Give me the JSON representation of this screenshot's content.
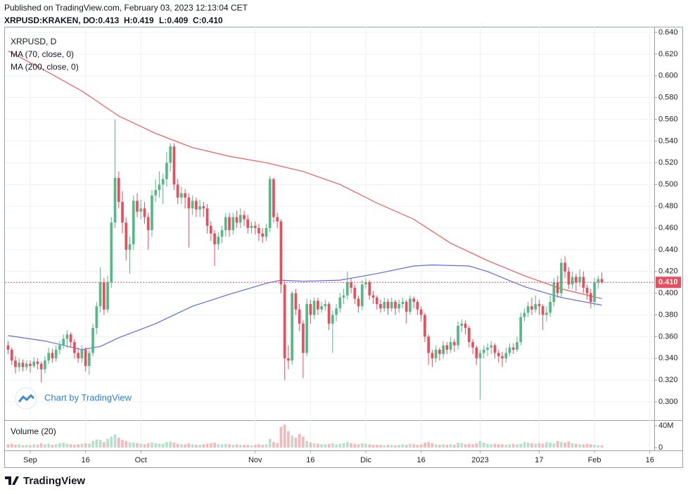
{
  "header": {
    "published": "Published on TradingView.com, February 03, 2023 12:13:04 CET",
    "symbol": "XRPUSD:KRAKEN, D",
    "ohlc_labels": [
      "O:0.413",
      "H:0.419",
      "L:0.409",
      "C:0.410"
    ]
  },
  "chart_data": {
    "type": "candlestick",
    "legend": [
      "XRPUSD, D",
      "MA (70, close, 0)",
      "MA (200, close, 0)"
    ],
    "volume_title": "Volume (20)",
    "watermark": "Chart by TradingView",
    "up_color": "#53b987",
    "down_color": "#eb4d5c",
    "volume_up_color": "#b7e1cd",
    "volume_down_color": "#f5b8bd",
    "xlim": [
      -0.86,
      175.2
    ],
    "xticks": [
      {
        "value": 6,
        "label": "Sep"
      },
      {
        "value": 21,
        "label": "16"
      },
      {
        "value": 36,
        "label": "Oct"
      },
      {
        "value": 67,
        "label": "Nov"
      },
      {
        "value": 82,
        "label": "16"
      },
      {
        "value": 97,
        "label": "Dic"
      },
      {
        "value": 112,
        "label": "16"
      },
      {
        "value": 128,
        "label": "2023"
      },
      {
        "value": 144,
        "label": "17"
      },
      {
        "value": 159,
        "label": "Feb"
      },
      {
        "value": 174,
        "label": "16"
      }
    ],
    "ylim": [
      0.2832,
      0.6452
    ],
    "yticks": [
      {
        "value": 0.3,
        "label": "0.300"
      },
      {
        "value": 0.32,
        "label": "0.320"
      },
      {
        "value": 0.34,
        "label": "0.340"
      },
      {
        "value": 0.36,
        "label": "0.360"
      },
      {
        "value": 0.38,
        "label": "0.380"
      },
      {
        "value": 0.4,
        "label": "0.400"
      },
      {
        "value": 0.42,
        "label": "0.420"
      },
      {
        "value": 0.44,
        "label": "0.440"
      },
      {
        "value": 0.46,
        "label": "0.460"
      },
      {
        "value": 0.48,
        "label": "0.480"
      },
      {
        "value": 0.5,
        "label": "0.500"
      },
      {
        "value": 0.52,
        "label": "0.520"
      },
      {
        "value": 0.54,
        "label": "0.540"
      },
      {
        "value": 0.56,
        "label": "0.560"
      },
      {
        "value": 0.58,
        "label": "0.580"
      },
      {
        "value": 0.6,
        "label": "0.600"
      },
      {
        "value": 0.62,
        "label": "0.620"
      },
      {
        "value": 0.64,
        "label": "0.640"
      }
    ],
    "grid": true,
    "last_value_label": "0.410",
    "ohlc": [
      [
        0.352,
        0.356,
        0.344,
        0.348
      ],
      [
        0.348,
        0.35,
        0.334,
        0.338
      ],
      [
        0.338,
        0.342,
        0.326,
        0.332
      ],
      [
        0.332,
        0.34,
        0.328,
        0.336
      ],
      [
        0.336,
        0.339,
        0.328,
        0.332
      ],
      [
        0.332,
        0.338,
        0.329,
        0.335
      ],
      [
        0.335,
        0.338,
        0.327,
        0.333
      ],
      [
        0.333,
        0.341,
        0.331,
        0.337
      ],
      [
        0.337,
        0.34,
        0.33,
        0.335
      ],
      [
        0.335,
        0.337,
        0.318,
        0.33
      ],
      [
        0.33,
        0.342,
        0.326,
        0.338
      ],
      [
        0.338,
        0.35,
        0.335,
        0.345
      ],
      [
        0.345,
        0.349,
        0.336,
        0.34
      ],
      [
        0.34,
        0.352,
        0.337,
        0.348
      ],
      [
        0.348,
        0.356,
        0.344,
        0.352
      ],
      [
        0.352,
        0.362,
        0.349,
        0.358
      ],
      [
        0.358,
        0.366,
        0.35,
        0.362
      ],
      [
        0.362,
        0.364,
        0.35,
        0.355
      ],
      [
        0.355,
        0.358,
        0.34,
        0.345
      ],
      [
        0.345,
        0.35,
        0.336,
        0.34
      ],
      [
        0.34,
        0.352,
        0.336,
        0.348
      ],
      [
        0.348,
        0.35,
        0.328,
        0.333
      ],
      [
        0.333,
        0.348,
        0.325,
        0.345
      ],
      [
        0.345,
        0.372,
        0.342,
        0.368
      ],
      [
        0.368,
        0.392,
        0.362,
        0.388
      ],
      [
        0.388,
        0.424,
        0.382,
        0.41
      ],
      [
        0.41,
        0.414,
        0.38,
        0.385
      ],
      [
        0.385,
        0.416,
        0.382,
        0.41
      ],
      [
        0.41,
        0.47,
        0.405,
        0.465
      ],
      [
        0.465,
        0.56,
        0.46,
        0.506
      ],
      [
        0.506,
        0.512,
        0.478,
        0.484
      ],
      [
        0.484,
        0.494,
        0.455,
        0.465
      ],
      [
        0.465,
        0.47,
        0.43,
        0.44
      ],
      [
        0.44,
        0.452,
        0.418,
        0.445
      ],
      [
        0.445,
        0.49,
        0.44,
        0.485
      ],
      [
        0.485,
        0.492,
        0.47,
        0.475
      ],
      [
        0.475,
        0.486,
        0.468,
        0.478
      ],
      [
        0.478,
        0.484,
        0.464,
        0.47
      ],
      [
        0.47,
        0.474,
        0.44,
        0.458
      ],
      [
        0.458,
        0.495,
        0.452,
        0.49
      ],
      [
        0.49,
        0.505,
        0.484,
        0.495
      ],
      [
        0.495,
        0.512,
        0.488,
        0.5
      ],
      [
        0.5,
        0.51,
        0.482,
        0.505
      ],
      [
        0.505,
        0.53,
        0.498,
        0.52
      ],
      [
        0.52,
        0.538,
        0.512,
        0.535
      ],
      [
        0.535,
        0.538,
        0.495,
        0.5
      ],
      [
        0.5,
        0.505,
        0.482,
        0.488
      ],
      [
        0.488,
        0.498,
        0.482,
        0.492
      ],
      [
        0.492,
        0.496,
        0.478,
        0.488
      ],
      [
        0.488,
        0.492,
        0.442,
        0.478
      ],
      [
        0.478,
        0.49,
        0.472,
        0.485
      ],
      [
        0.485,
        0.488,
        0.47,
        0.477
      ],
      [
        0.477,
        0.486,
        0.47,
        0.48
      ],
      [
        0.48,
        0.484,
        0.47,
        0.478
      ],
      [
        0.478,
        0.482,
        0.455,
        0.462
      ],
      [
        0.462,
        0.466,
        0.448,
        0.455
      ],
      [
        0.455,
        0.458,
        0.425,
        0.445
      ],
      [
        0.445,
        0.456,
        0.44,
        0.452
      ],
      [
        0.452,
        0.462,
        0.446,
        0.458
      ],
      [
        0.458,
        0.474,
        0.452,
        0.47
      ],
      [
        0.47,
        0.474,
        0.452,
        0.458
      ],
      [
        0.458,
        0.474,
        0.454,
        0.47
      ],
      [
        0.47,
        0.476,
        0.46,
        0.465
      ],
      [
        0.465,
        0.478,
        0.46,
        0.472
      ],
      [
        0.472,
        0.476,
        0.462,
        0.468
      ],
      [
        0.468,
        0.472,
        0.455,
        0.46
      ],
      [
        0.46,
        0.466,
        0.455,
        0.462
      ],
      [
        0.462,
        0.466,
        0.454,
        0.46
      ],
      [
        0.46,
        0.464,
        0.448,
        0.455
      ],
      [
        0.455,
        0.46,
        0.446,
        0.452
      ],
      [
        0.452,
        0.464,
        0.448,
        0.46
      ],
      [
        0.46,
        0.508,
        0.456,
        0.505
      ],
      [
        0.505,
        0.506,
        0.465,
        0.47
      ],
      [
        0.47,
        0.474,
        0.46,
        0.466
      ],
      [
        0.466,
        0.468,
        0.4,
        0.408
      ],
      [
        0.408,
        0.412,
        0.32,
        0.34
      ],
      [
        0.34,
        0.352,
        0.33,
        0.338
      ],
      [
        0.338,
        0.402,
        0.334,
        0.4
      ],
      [
        0.4,
        0.404,
        0.38,
        0.385
      ],
      [
        0.385,
        0.39,
        0.365,
        0.372
      ],
      [
        0.372,
        0.375,
        0.322,
        0.345
      ],
      [
        0.345,
        0.395,
        0.342,
        0.39
      ],
      [
        0.39,
        0.394,
        0.372,
        0.38
      ],
      [
        0.38,
        0.396,
        0.376,
        0.393
      ],
      [
        0.393,
        0.396,
        0.38,
        0.385
      ],
      [
        0.385,
        0.392,
        0.382,
        0.388
      ],
      [
        0.388,
        0.394,
        0.384,
        0.39
      ],
      [
        0.39,
        0.392,
        0.366,
        0.372
      ],
      [
        0.372,
        0.384,
        0.345,
        0.38
      ],
      [
        0.38,
        0.39,
        0.374,
        0.386
      ],
      [
        0.386,
        0.4,
        0.382,
        0.396
      ],
      [
        0.396,
        0.404,
        0.39,
        0.398
      ],
      [
        0.398,
        0.42,
        0.394,
        0.41
      ],
      [
        0.41,
        0.414,
        0.4,
        0.405
      ],
      [
        0.405,
        0.408,
        0.39,
        0.395
      ],
      [
        0.395,
        0.398,
        0.382,
        0.388
      ],
      [
        0.388,
        0.412,
        0.384,
        0.408
      ],
      [
        0.408,
        0.414,
        0.404,
        0.41
      ],
      [
        0.41,
        0.412,
        0.394,
        0.398
      ],
      [
        0.398,
        0.402,
        0.39,
        0.396
      ],
      [
        0.396,
        0.398,
        0.385,
        0.39
      ],
      [
        0.39,
        0.394,
        0.382,
        0.386
      ],
      [
        0.386,
        0.396,
        0.383,
        0.392
      ],
      [
        0.392,
        0.395,
        0.38,
        0.386
      ],
      [
        0.386,
        0.396,
        0.383,
        0.392
      ],
      [
        0.392,
        0.394,
        0.38,
        0.386
      ],
      [
        0.386,
        0.394,
        0.382,
        0.39
      ],
      [
        0.39,
        0.396,
        0.386,
        0.392
      ],
      [
        0.392,
        0.394,
        0.372,
        0.383
      ],
      [
        0.383,
        0.398,
        0.38,
        0.395
      ],
      [
        0.395,
        0.397,
        0.386,
        0.392
      ],
      [
        0.392,
        0.394,
        0.38,
        0.385
      ],
      [
        0.385,
        0.388,
        0.374,
        0.38
      ],
      [
        0.38,
        0.382,
        0.355,
        0.36
      ],
      [
        0.36,
        0.362,
        0.334,
        0.345
      ],
      [
        0.345,
        0.348,
        0.332,
        0.34
      ],
      [
        0.34,
        0.352,
        0.336,
        0.348
      ],
      [
        0.348,
        0.35,
        0.338,
        0.344
      ],
      [
        0.344,
        0.356,
        0.34,
        0.352
      ],
      [
        0.352,
        0.355,
        0.344,
        0.348
      ],
      [
        0.348,
        0.36,
        0.345,
        0.355
      ],
      [
        0.355,
        0.358,
        0.346,
        0.352
      ],
      [
        0.352,
        0.374,
        0.348,
        0.37
      ],
      [
        0.37,
        0.376,
        0.364,
        0.372
      ],
      [
        0.372,
        0.375,
        0.362,
        0.368
      ],
      [
        0.368,
        0.37,
        0.35,
        0.355
      ],
      [
        0.355,
        0.358,
        0.344,
        0.35
      ],
      [
        0.35,
        0.352,
        0.334,
        0.34
      ],
      [
        0.34,
        0.348,
        0.302,
        0.345
      ],
      [
        0.345,
        0.352,
        0.34,
        0.348
      ],
      [
        0.348,
        0.354,
        0.342,
        0.35
      ],
      [
        0.35,
        0.356,
        0.344,
        0.352
      ],
      [
        0.352,
        0.354,
        0.34,
        0.345
      ],
      [
        0.345,
        0.348,
        0.336,
        0.342
      ],
      [
        0.342,
        0.346,
        0.332,
        0.34
      ],
      [
        0.34,
        0.35,
        0.336,
        0.345
      ],
      [
        0.345,
        0.354,
        0.342,
        0.35
      ],
      [
        0.35,
        0.354,
        0.344,
        0.348
      ],
      [
        0.348,
        0.36,
        0.346,
        0.355
      ],
      [
        0.355,
        0.382,
        0.352,
        0.378
      ],
      [
        0.378,
        0.386,
        0.374,
        0.382
      ],
      [
        0.382,
        0.392,
        0.378,
        0.388
      ],
      [
        0.388,
        0.396,
        0.38,
        0.385
      ],
      [
        0.385,
        0.398,
        0.382,
        0.39
      ],
      [
        0.39,
        0.394,
        0.38,
        0.388
      ],
      [
        0.388,
        0.39,
        0.366,
        0.38
      ],
      [
        0.38,
        0.388,
        0.374,
        0.382
      ],
      [
        0.382,
        0.398,
        0.378,
        0.392
      ],
      [
        0.392,
        0.414,
        0.388,
        0.41
      ],
      [
        0.41,
        0.416,
        0.396,
        0.4
      ],
      [
        0.4,
        0.432,
        0.396,
        0.428
      ],
      [
        0.428,
        0.434,
        0.414,
        0.42
      ],
      [
        0.42,
        0.424,
        0.404,
        0.408
      ],
      [
        0.408,
        0.42,
        0.404,
        0.415
      ],
      [
        0.415,
        0.418,
        0.402,
        0.41
      ],
      [
        0.41,
        0.422,
        0.406,
        0.415
      ],
      [
        0.415,
        0.42,
        0.4,
        0.405
      ],
      [
        0.405,
        0.408,
        0.394,
        0.4
      ],
      [
        0.4,
        0.404,
        0.386,
        0.392
      ],
      [
        0.392,
        0.414,
        0.388,
        0.41
      ],
      [
        0.41,
        0.416,
        0.404,
        0.413
      ],
      [
        0.413,
        0.419,
        0.409,
        0.41
      ]
    ],
    "volume": [
      6000000.0,
      7000000.0,
      5000000.0,
      6000000.0,
      4000000.0,
      5000000.0,
      4000000.0,
      6000000.0,
      5000000.0,
      8000000.0,
      6000000.0,
      7000000.0,
      5000000.0,
      6000000.0,
      8000000.0,
      9000000.0,
      7000000.0,
      6000000.0,
      5000000.0,
      6000000.0,
      7000000.0,
      8000000.0,
      7000000.0,
      12000000.0,
      15000000.0,
      14000000.0,
      10000000.0,
      16000000.0,
      20000000.0,
      24000000.0,
      18000000.0,
      14000000.0,
      12000000.0,
      10000000.0,
      9000000.0,
      8000000.0,
      7000000.0,
      6000000.0,
      8000000.0,
      9000000.0,
      8000000.0,
      7000000.0,
      7000000.0,
      10000000.0,
      11000000.0,
      9000000.0,
      7000000.0,
      6000000.0,
      6000000.0,
      8000000.0,
      6000000.0,
      5000000.0,
      5000000.0,
      6000000.0,
      7000000.0,
      8000000.0,
      9000000.0,
      6000000.0,
      6000000.0,
      7000000.0,
      6000000.0,
      5000000.0,
      6000000.0,
      5000000.0,
      5000000.0,
      5000000.0,
      4000000.0,
      5000000.0,
      6000000.0,
      5000000.0,
      6000000.0,
      16000000.0,
      10000000.0,
      8000000.0,
      38000000.0,
      42000000.0,
      30000000.0,
      22000000.0,
      18000000.0,
      25000000.0,
      20000000.0,
      12000000.0,
      9000000.0,
      8000000.0,
      7000000.0,
      6000000.0,
      6000000.0,
      7000000.0,
      8000000.0,
      6000000.0,
      7000000.0,
      8000000.0,
      10000000.0,
      8000000.0,
      7000000.0,
      6000000.0,
      8000000.0,
      7000000.0,
      6000000.0,
      5000000.0,
      5000000.0,
      5000000.0,
      4000000.0,
      5000000.0,
      5000000.0,
      4000000.0,
      5000000.0,
      6000000.0,
      5000000.0,
      7000000.0,
      6000000.0,
      5000000.0,
      6000000.0,
      9000000.0,
      10000000.0,
      8000000.0,
      6000000.0,
      5000000.0,
      6000000.0,
      5000000.0,
      6000000.0,
      5000000.0,
      9000000.0,
      8000000.0,
      6000000.0,
      7000000.0,
      6000000.0,
      8000000.0,
      12000000.0,
      9000000.0,
      7000000.0,
      6000000.0,
      7000000.0,
      6000000.0,
      6000000.0,
      5000000.0,
      6000000.0,
      7000000.0,
      6000000.0,
      7000000.0,
      10000000.0,
      9000000.0,
      8000000.0,
      7000000.0,
      8000000.0,
      7000000.0,
      10000000.0,
      9000000.0,
      8000000.0,
      12000000.0,
      10000000.0,
      9000000.0,
      11000000.0,
      8000000.0,
      7000000.0,
      6000000.0,
      6000000.0,
      7000000.0,
      6000000.0,
      5000000.0,
      4000000.0,
      4000000.0
    ],
    "volume_lim": [
      -5200000,
      50300000
    ],
    "volume_ticks": [
      {
        "value": 0,
        "label": "0"
      },
      {
        "value": 40000000,
        "label": "40M"
      }
    ],
    "lines": [
      {
        "name": "MA (70, close, 0)",
        "color": "#5d6de0",
        "x": [
          0,
          10,
          20,
          25,
          30,
          40,
          50,
          60,
          70,
          74,
          80,
          90,
          100,
          110,
          115,
          125,
          130,
          140,
          150,
          161
        ],
        "values": [
          0.361,
          0.356,
          0.348,
          0.351,
          0.359,
          0.372,
          0.388,
          0.399,
          0.409,
          0.412,
          0.411,
          0.412,
          0.418,
          0.425,
          0.426,
          0.425,
          0.42,
          0.406,
          0.396,
          0.389
        ]
      },
      {
        "name": "MA (200, close, 0)",
        "color": "#ef5a5a",
        "x": [
          0,
          10,
          20,
          30,
          40,
          50,
          60,
          70,
          80,
          90,
          100,
          110,
          120,
          130,
          140,
          150,
          161
        ],
        "values": [
          0.623,
          0.605,
          0.586,
          0.563,
          0.547,
          0.534,
          0.526,
          0.52,
          0.512,
          0.5,
          0.483,
          0.468,
          0.446,
          0.43,
          0.416,
          0.404,
          0.395
        ]
      }
    ]
  },
  "footer": {
    "brand": "TradingView"
  }
}
